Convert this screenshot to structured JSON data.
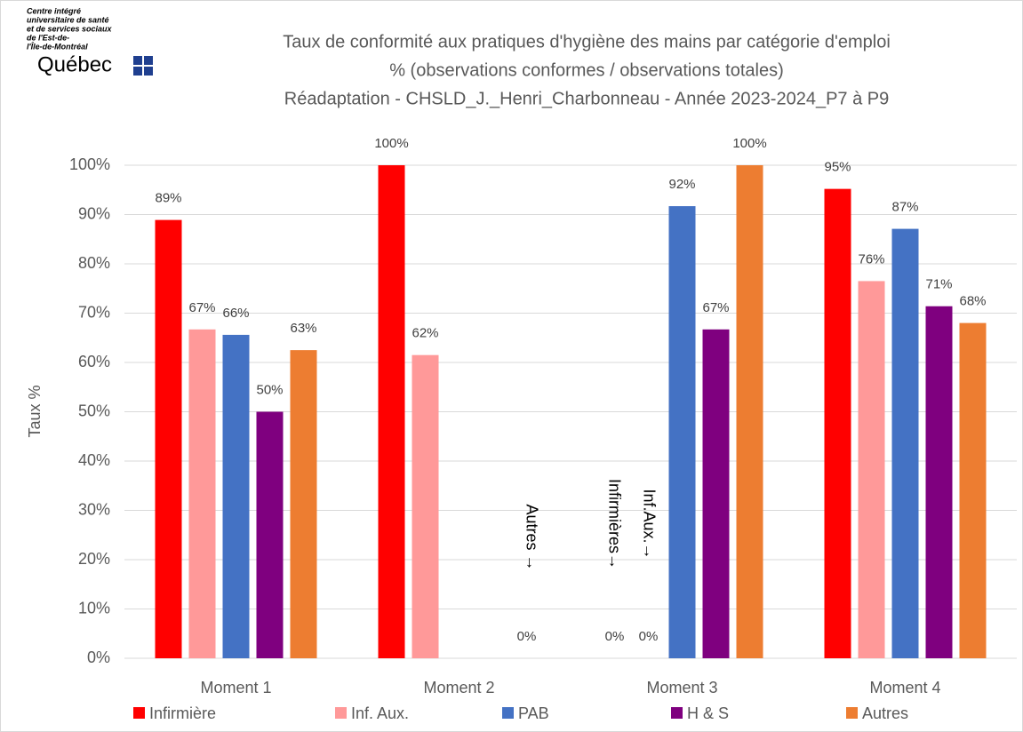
{
  "logo": {
    "lines": [
      "Centre intégré",
      "universitaire de santé",
      "et de services sociaux",
      "de l'Est-de-",
      "l'Île-de-Montréal"
    ],
    "name": "Québec"
  },
  "chart_data": {
    "type": "bar",
    "title": "Taux de conformité aux pratiques d'hygiène des mains par catégorie d'emploi",
    "subtitle": "% (observations conformes / observations totales)",
    "subtitle2": "Réadaptation - CHSLD_J._Henri_Charbonneau - Année 2023-2024_P7 à P9",
    "ylabel": "Taux %",
    "categories": [
      "Moment 1",
      "Moment 2",
      "Moment 3",
      "Moment 4"
    ],
    "series": [
      {
        "name": "Infirmière",
        "color": "#ff0000",
        "values": [
          88.9,
          100,
          0,
          95.2
        ],
        "value_labels": [
          "89%",
          "100%",
          "0%",
          "95%"
        ]
      },
      {
        "name": "Inf. Aux.",
        "color": "#ff9999",
        "values": [
          66.7,
          61.5,
          0,
          76.5
        ],
        "value_labels": [
          "67%",
          "62%",
          "0%",
          "76%"
        ]
      },
      {
        "name": "PAB",
        "color": "#4472c4",
        "values": [
          65.6,
          null,
          91.7,
          87.1
        ],
        "value_labels": [
          "66%",
          null,
          "92%",
          "87%"
        ]
      },
      {
        "name": "H & S",
        "color": "#7f007f",
        "values": [
          50,
          null,
          66.7,
          71.4
        ],
        "value_labels": [
          "50%",
          null,
          "67%",
          "71%"
        ]
      },
      {
        "name": "Autres",
        "color": "#ed7d31",
        "values": [
          62.5,
          0,
          100,
          68
        ],
        "value_labels": [
          "63%",
          "0%",
          "100%",
          "68%"
        ]
      }
    ],
    "annotations": [
      "Autres →",
      "Infirmières→",
      "Inf.Aux.→"
    ],
    "ylim": [
      0,
      100
    ],
    "yticks": [
      {
        "value": 0,
        "label": "0%"
      },
      {
        "value": 10,
        "label": "10%"
      },
      {
        "value": 20,
        "label": "20%"
      },
      {
        "value": 30,
        "label": "30%"
      },
      {
        "value": 40,
        "label": "40%"
      },
      {
        "value": 50,
        "label": "50%"
      },
      {
        "value": 60,
        "label": "60%"
      },
      {
        "value": 70,
        "label": "70%"
      },
      {
        "value": 80,
        "label": "80%"
      },
      {
        "value": 90,
        "label": "90%"
      },
      {
        "value": 100,
        "label": "100%"
      }
    ],
    "grid": true,
    "legend": "bottom"
  }
}
